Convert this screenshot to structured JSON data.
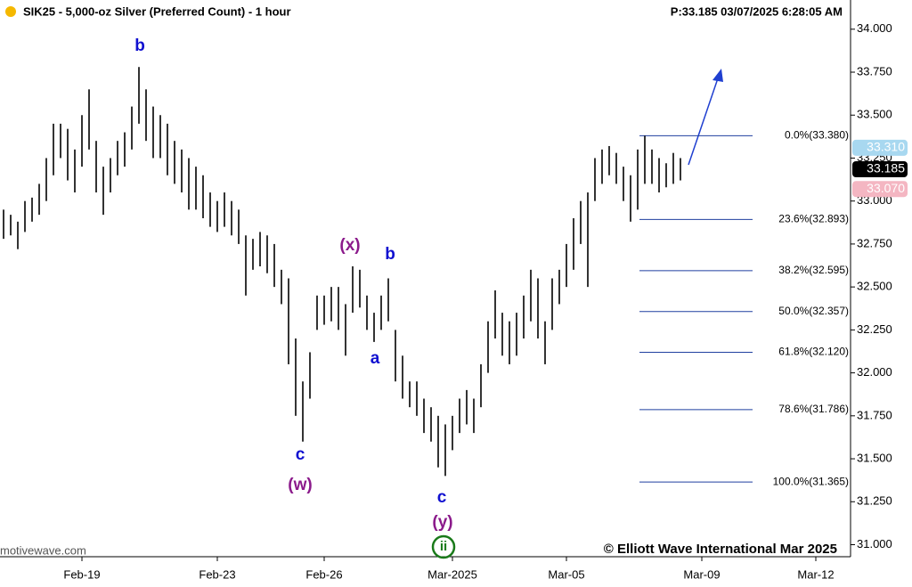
{
  "chart_data": {
    "type": "ohlc",
    "title": "SIK25 - 5,000-oz Silver (Preferred Count) - 1 hour",
    "subtitle": "P:33.185  03/07/2025 6:28:05 AM",
    "source": "motivewave.com",
    "copyright": "© Elliott Wave International Mar 2025",
    "color": "#000000",
    "categories": [
      null,
      null,
      null,
      null,
      null,
      null,
      null,
      null,
      null,
      null,
      null,
      "Feb-19",
      null,
      null,
      null,
      null,
      null,
      null,
      null,
      null,
      null,
      null,
      null,
      null,
      null,
      null,
      null,
      null,
      null,
      null,
      "Feb-23",
      null,
      null,
      null,
      null,
      null,
      null,
      null,
      null,
      null,
      null,
      null,
      null,
      null,
      null,
      "Feb-26",
      null,
      null,
      null,
      null,
      null,
      null,
      null,
      null,
      null,
      null,
      null,
      null,
      null,
      null,
      null,
      null,
      null,
      "Mar-2025",
      null,
      null,
      null,
      null,
      null,
      null,
      null,
      null,
      null,
      null,
      null,
      null,
      null,
      null,
      null,
      "Mar-05",
      null,
      null,
      null,
      null,
      null,
      null,
      null,
      null,
      null,
      null,
      null,
      null,
      null,
      null,
      null,
      null,
      null,
      null,
      "Mar-09",
      null,
      null,
      null,
      null,
      null,
      null,
      null,
      null,
      null,
      null,
      null,
      null,
      null,
      null,
      null,
      "Mar-12",
      null,
      null,
      null,
      null,
      null
    ],
    "high": [
      32.95,
      32.92,
      32.88,
      33.0,
      33.02,
      33.1,
      33.25,
      33.45,
      33.45,
      33.42,
      33.3,
      33.5,
      33.65,
      33.35,
      33.2,
      33.25,
      33.35,
      33.4,
      33.55,
      33.78,
      33.65,
      33.55,
      33.5,
      33.45,
      33.35,
      33.3,
      33.25,
      33.2,
      33.15,
      33.05,
      33.0,
      33.05,
      33.0,
      32.95,
      32.8,
      32.78,
      32.82,
      32.8,
      32.75,
      32.6,
      32.55,
      32.2,
      31.95,
      32.12,
      32.45,
      32.45,
      32.5,
      32.5,
      32.4,
      32.62,
      32.6,
      32.45,
      32.35,
      32.45,
      32.55,
      32.25,
      32.1,
      31.95,
      31.95,
      31.85,
      31.8,
      31.75,
      31.7,
      31.75,
      31.85,
      31.9,
      31.85,
      32.05,
      32.3,
      32.48,
      32.35,
      32.3,
      32.35,
      32.45,
      32.6,
      32.55,
      32.3,
      32.55,
      32.6,
      32.75,
      32.9,
      33.0,
      33.05,
      33.25,
      33.3,
      33.32,
      33.28,
      33.2,
      33.15,
      33.3,
      33.38,
      33.3,
      33.25,
      33.22,
      33.28,
      33.25,
      null,
      null,
      null,
      null,
      null,
      null,
      null,
      null,
      null,
      null,
      null,
      null,
      null,
      null,
      null,
      null,
      null,
      null,
      null,
      null,
      null,
      null,
      null,
      null
    ],
    "low": [
      32.78,
      32.8,
      32.72,
      32.82,
      32.88,
      32.92,
      33.0,
      33.15,
      33.25,
      33.12,
      33.05,
      33.2,
      33.3,
      33.05,
      32.92,
      33.05,
      33.15,
      33.2,
      33.3,
      33.45,
      33.35,
      33.25,
      33.25,
      33.15,
      33.1,
      33.05,
      32.95,
      32.95,
      32.9,
      32.85,
      32.82,
      32.85,
      32.8,
      32.75,
      32.45,
      32.6,
      32.62,
      32.58,
      32.5,
      32.4,
      32.05,
      31.75,
      31.6,
      31.85,
      32.25,
      32.28,
      32.3,
      32.25,
      32.1,
      32.35,
      32.38,
      32.25,
      32.18,
      32.25,
      32.3,
      31.95,
      31.85,
      31.8,
      31.75,
      31.65,
      31.6,
      31.45,
      31.4,
      31.55,
      31.65,
      31.7,
      31.65,
      31.8,
      32.0,
      32.2,
      32.1,
      32.05,
      32.1,
      32.2,
      32.3,
      32.2,
      32.05,
      32.25,
      32.4,
      32.5,
      32.6,
      32.75,
      32.5,
      33.0,
      33.1,
      33.15,
      33.1,
      33.0,
      32.88,
      32.95,
      33.1,
      33.1,
      33.05,
      33.08,
      33.1,
      33.12,
      null,
      null,
      null,
      null,
      null,
      null,
      null,
      null,
      null,
      null,
      null,
      null,
      null,
      null,
      null,
      null,
      null,
      null,
      null,
      null,
      null,
      null,
      null,
      null
    ],
    "ylim": [
      30.93,
      34.17
    ],
    "yticks": [
      {
        "value": 31,
        "label": "31.000"
      },
      {
        "value": 31.25,
        "label": "31.250"
      },
      {
        "value": 31.5,
        "label": "31.500"
      },
      {
        "value": 31.75,
        "label": "31.750"
      },
      {
        "value": 32,
        "label": "32.000"
      },
      {
        "value": 32.25,
        "label": "32.250"
      },
      {
        "value": 32.5,
        "label": "32.500"
      },
      {
        "value": 32.75,
        "label": "32.750"
      },
      {
        "value": 33,
        "label": "33.000"
      },
      {
        "value": 33.25,
        "label": "33.250"
      },
      {
        "value": 33.5,
        "label": "33.500"
      },
      {
        "value": 33.75,
        "label": "33.750"
      },
      {
        "value": 34,
        "label": "34.000"
      }
    ],
    "fib_levels": [
      {
        "value": 33.38,
        "label": "0.0%(33.380)"
      },
      {
        "value": 32.893,
        "label": "23.6%(32.893)"
      },
      {
        "value": 32.595,
        "label": "38.2%(32.595)"
      },
      {
        "value": 32.357,
        "label": "50.0%(32.357)"
      },
      {
        "value": 32.12,
        "label": "61.8%(32.120)"
      },
      {
        "value": 31.786,
        "label": "78.6%(31.786)"
      },
      {
        "value": 31.365,
        "label": "100.0%(31.365)"
      }
    ],
    "fib_color": "#1f3f9f",
    "price_tags": [
      {
        "value": 33.31,
        "label": "33.310",
        "color": "#a8d8f0",
        "text_color": "#ffffff"
      },
      {
        "value": 33.185,
        "label": "33.185",
        "color": "#000000",
        "text_color": "#ffffff"
      },
      {
        "value": 33.07,
        "label": "33.070",
        "color": "#f4b6c2",
        "text_color": "#ffffff"
      }
    ],
    "annotations": [
      {
        "text": "b",
        "color": "#1010d0"
      },
      {
        "text": "c",
        "color": "#1010d0"
      },
      {
        "text": "(w)",
        "color": "#8b1a8b"
      },
      {
        "text": "(x)",
        "color": "#8b1a8b"
      },
      {
        "text": "b",
        "color": "#1010d0"
      },
      {
        "text": "a",
        "color": "#1010d0"
      },
      {
        "text": "c",
        "color": "#1010d0"
      },
      {
        "text": "(y)",
        "color": "#8b1a8b"
      },
      {
        "text": "ii",
        "color": "#1a7a1a"
      }
    ]
  }
}
